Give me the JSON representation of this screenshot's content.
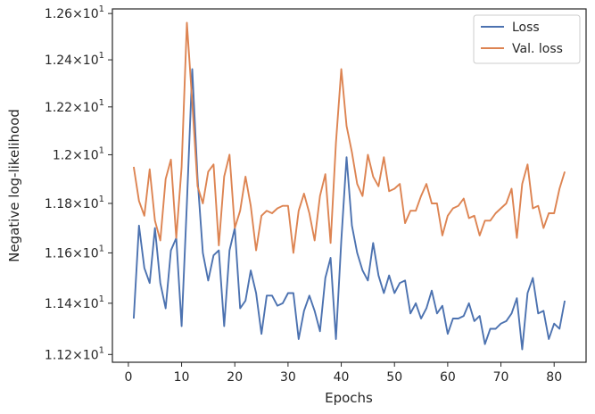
{
  "chart_data": {
    "type": "line",
    "xlabel": "Epochs",
    "ylabel": "Negative log-likelihood",
    "xlim": [
      -3,
      86
    ],
    "ylim": [
      11.17,
      12.62
    ],
    "yscale": "log",
    "grid": false,
    "legend_position": "top-right",
    "x_ticks": [
      0,
      10,
      20,
      30,
      40,
      50,
      60,
      70,
      80
    ],
    "x_tick_labels": [
      "0",
      "10",
      "20",
      "30",
      "40",
      "50",
      "60",
      "70",
      "80"
    ],
    "y_ticks": [
      11.2,
      11.4,
      11.6,
      11.8,
      12.0,
      12.2,
      12.4,
      12.6
    ],
    "y_tick_labels": [
      {
        "mantissa": "1.12",
        "exp": "1"
      },
      {
        "mantissa": "1.14",
        "exp": "1"
      },
      {
        "mantissa": "1.16",
        "exp": "1"
      },
      {
        "mantissa": "1.18",
        "exp": "1"
      },
      {
        "mantissa": "1.2",
        "exp": "1"
      },
      {
        "mantissa": "1.22",
        "exp": "1"
      },
      {
        "mantissa": "1.24",
        "exp": "1"
      },
      {
        "mantissa": "1.26",
        "exp": "1"
      }
    ],
    "tick_times": "×",
    "tick_base": "10",
    "x": [
      1,
      2,
      3,
      4,
      5,
      6,
      7,
      8,
      9,
      10,
      11,
      12,
      13,
      14,
      15,
      16,
      17,
      18,
      19,
      20,
      21,
      22,
      23,
      24,
      25,
      26,
      27,
      28,
      29,
      30,
      31,
      32,
      33,
      34,
      35,
      36,
      37,
      38,
      39,
      40,
      41,
      42,
      43,
      44,
      45,
      46,
      47,
      48,
      49,
      50,
      51,
      52,
      53,
      54,
      55,
      56,
      57,
      58,
      59,
      60,
      61,
      62,
      63,
      64,
      65,
      66,
      67,
      68,
      69,
      70,
      71,
      72,
      73,
      74,
      75,
      76,
      77,
      78,
      79,
      80,
      81,
      82
    ],
    "series": [
      {
        "name": "Loss",
        "color": "#4c72b0",
        "values": [
          11.34,
          11.71,
          11.54,
          11.48,
          11.7,
          11.48,
          11.38,
          11.61,
          11.66,
          11.31,
          11.8,
          12.36,
          11.9,
          11.6,
          11.49,
          11.59,
          11.61,
          11.31,
          11.61,
          11.7,
          11.38,
          11.41,
          11.53,
          11.44,
          11.28,
          11.43,
          11.43,
          11.39,
          11.4,
          11.44,
          11.44,
          11.26,
          11.37,
          11.43,
          11.37,
          11.29,
          11.5,
          11.58,
          11.26,
          11.65,
          11.99,
          11.71,
          11.6,
          11.53,
          11.49,
          11.64,
          11.51,
          11.44,
          11.51,
          11.44,
          11.48,
          11.49,
          11.36,
          11.4,
          11.34,
          11.38,
          11.45,
          11.36,
          11.39,
          11.28,
          11.34,
          11.34,
          11.35,
          11.4,
          11.33,
          11.35,
          11.24,
          11.3,
          11.3,
          11.32,
          11.33,
          11.36,
          11.42,
          11.22,
          11.44,
          11.5,
          11.36,
          11.37,
          11.26,
          11.32,
          11.3,
          11.41
        ]
      },
      {
        "name": "Val. loss",
        "color": "#dd8452",
        "values": [
          11.95,
          11.81,
          11.75,
          11.94,
          11.73,
          11.65,
          11.9,
          11.98,
          11.66,
          11.95,
          12.56,
          12.22,
          11.87,
          11.8,
          11.93,
          11.96,
          11.63,
          11.91,
          12.0,
          11.7,
          11.77,
          11.91,
          11.79,
          11.61,
          11.75,
          11.77,
          11.76,
          11.78,
          11.79,
          11.79,
          11.6,
          11.77,
          11.84,
          11.76,
          11.65,
          11.83,
          11.92,
          11.64,
          12.05,
          12.36,
          12.12,
          12.01,
          11.88,
          11.83,
          12.0,
          11.91,
          11.87,
          11.99,
          11.85,
          11.86,
          11.88,
          11.72,
          11.77,
          11.77,
          11.83,
          11.88,
          11.8,
          11.8,
          11.67,
          11.75,
          11.78,
          11.79,
          11.82,
          11.74,
          11.75,
          11.67,
          11.73,
          11.73,
          11.76,
          11.78,
          11.8,
          11.86,
          11.66,
          11.88,
          11.96,
          11.78,
          11.79,
          11.7,
          11.76,
          11.76,
          11.86,
          11.93
        ]
      }
    ]
  }
}
